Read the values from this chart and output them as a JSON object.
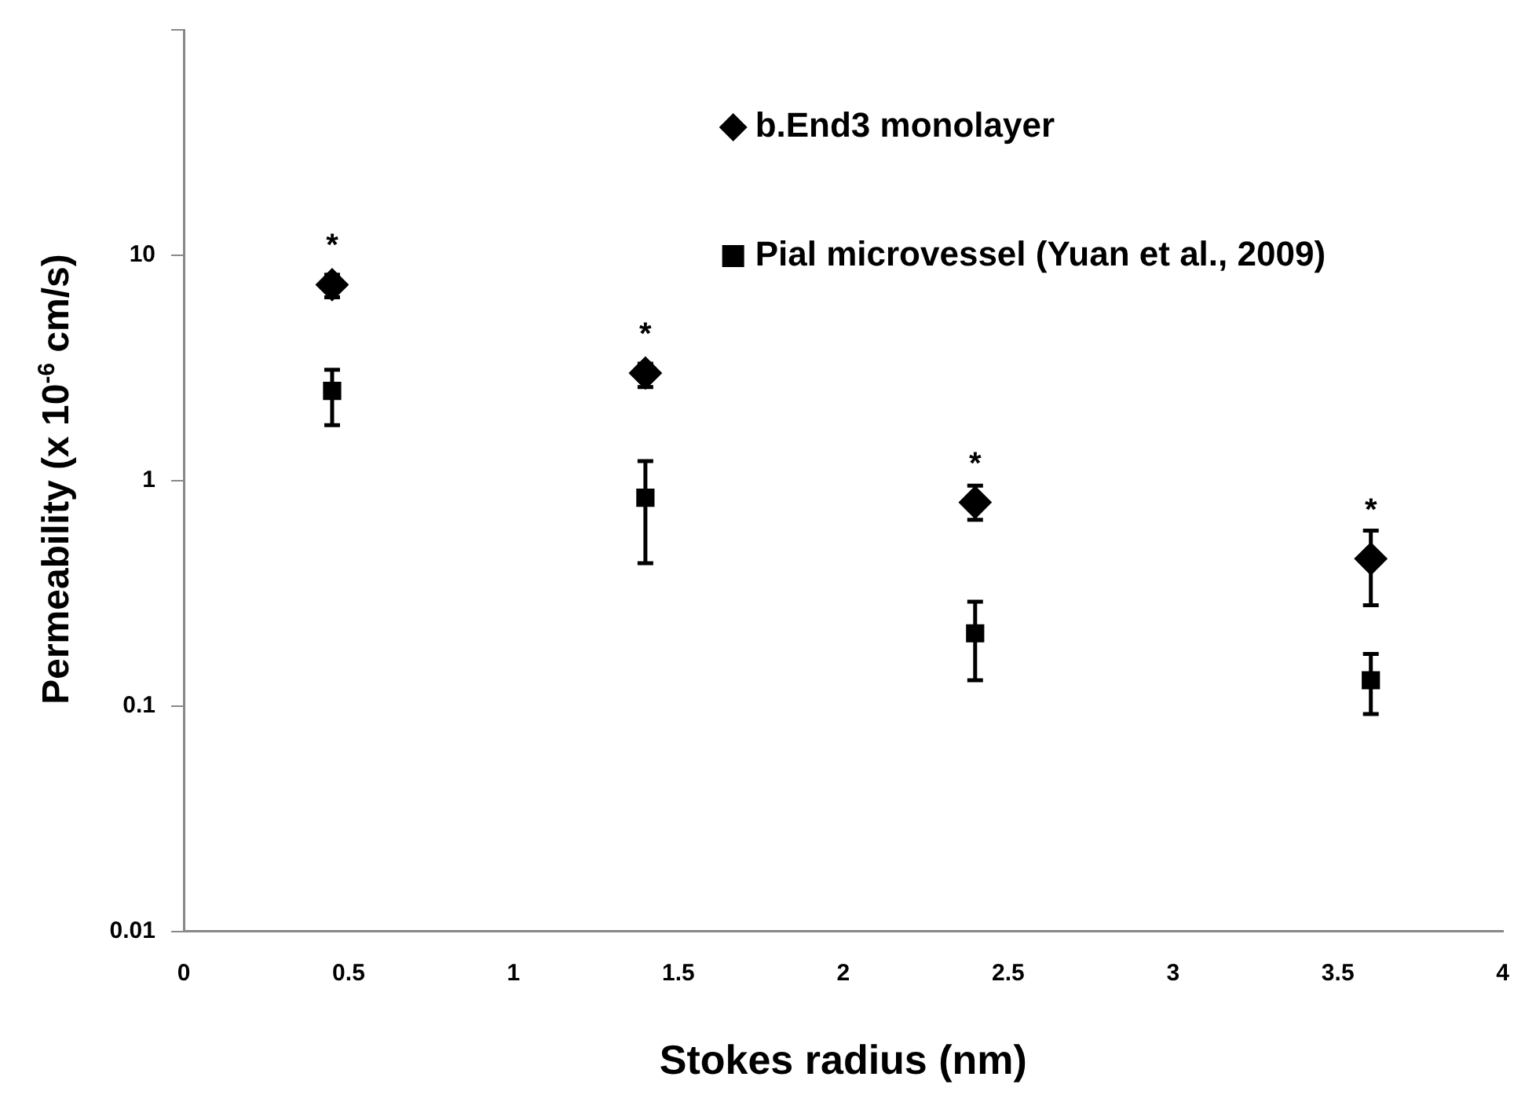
{
  "chart_data": {
    "type": "scatter",
    "xlabel": "Stokes radius (nm)",
    "ylabel": "Permeability (x 10$^{-6}$ cm/s)",
    "xlim": [
      0,
      4
    ],
    "xticks": [
      0,
      0.5,
      1,
      1.5,
      2,
      2.5,
      3,
      3.5,
      4
    ],
    "ylim": [
      0.01,
      100
    ],
    "yticks": [
      0.01,
      0.1,
      1,
      10,
      {
        "value": 100,
        "label": null
      }
    ],
    "log": "y",
    "grid": false,
    "legend": "top right",
    "series": [
      {
        "name": "b.End3 monolayer",
        "color": "#000000",
        "marker": "diamond",
        "x": [
          0.45,
          1.4,
          2.4,
          3.6
        ],
        "values": [
          7.4,
          3.0,
          0.8,
          0.45
        ],
        "errors": [
          [
            6.5,
            8.2
          ],
          [
            2.6,
            3.3
          ],
          [
            0.67,
            0.95
          ],
          [
            0.28,
            0.6
          ]
        ]
      },
      {
        "name": "Pial microvessel (Yuan et al., 2009)",
        "color": "#000000",
        "marker": "square",
        "x": [
          0.45,
          1.4,
          2.4,
          3.6
        ],
        "values": [
          2.5,
          0.84,
          0.21,
          0.13
        ],
        "errors": [
          [
            1.76,
            3.1
          ],
          [
            0.43,
            1.22
          ],
          [
            0.13,
            0.29
          ],
          [
            0.092,
            0.17
          ]
        ]
      }
    ],
    "annotations": [
      {
        "text": "*",
        "x": 0.45,
        "y": 7.4
      },
      {
        "text": "*",
        "x": 1.4,
        "y": 3.0
      },
      {
        "text": "*",
        "x": 2.4,
        "y": 0.8
      },
      {
        "text": "*",
        "x": 3.6,
        "y": 0.45
      }
    ]
  }
}
